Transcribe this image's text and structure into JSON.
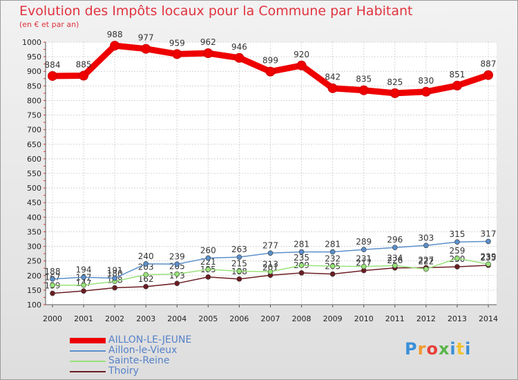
{
  "header": {
    "title": "Evolution des Impôts locaux pour la Commune par Habitant",
    "subtitle": "(en € et par an)"
  },
  "chart_data": {
    "type": "line",
    "title": "Evolution des Impôts locaux pour la Commune par Habitant",
    "ylabel": "(en € et par an)",
    "xlabel": "",
    "x": [
      "2000",
      "2001",
      "2002",
      "2003",
      "2004",
      "2005",
      "2006",
      "2007",
      "2008",
      "2009",
      "2010",
      "2011",
      "2012",
      "2013",
      "2014"
    ],
    "yticks": [
      100,
      150,
      200,
      250,
      300,
      350,
      400,
      450,
      500,
      550,
      600,
      650,
      700,
      750,
      800,
      850,
      900,
      950,
      1000
    ],
    "ylim": [
      100,
      1000
    ],
    "series": [
      {
        "name": "AILLON-LE-JEUNE",
        "color": "#ee0000",
        "values": [
          884,
          885,
          988,
          977,
          959,
          962,
          946,
          899,
          920,
          842,
          835,
          825,
          830,
          851,
          887
        ]
      },
      {
        "name": "Aillon-le-Vieux",
        "color": "#5b8fc9",
        "values": [
          188,
          194,
          191,
          240,
          239,
          260,
          263,
          277,
          281,
          281,
          289,
          296,
          303,
          315,
          317
        ]
      },
      {
        "name": "Sainte-Reine",
        "color": "#99e27a",
        "values": [
          167,
          167,
          180,
          203,
          205,
          221,
          215,
          213,
          235,
          232,
          231,
          234,
          222,
          259,
          239
        ]
      },
      {
        "name": "Thoiry",
        "color": "#6b1c22",
        "values": [
          139,
          147,
          158,
          162,
          173,
          195,
          188,
          201,
          209,
          205,
          217,
          226,
          227,
          230,
          235
        ]
      }
    ]
  },
  "legend": {
    "items": [
      {
        "label": "AILLON-LE-JEUNE",
        "color": "#ee0000"
      },
      {
        "label": "Aillon-le-Vieux",
        "color": "#5b8fc9"
      },
      {
        "label": "Sainte-Reine",
        "color": "#99e27a"
      },
      {
        "label": "Thoiry",
        "color": "#6b1c22"
      }
    ]
  },
  "branding": {
    "logo_text": "Proxiti"
  }
}
